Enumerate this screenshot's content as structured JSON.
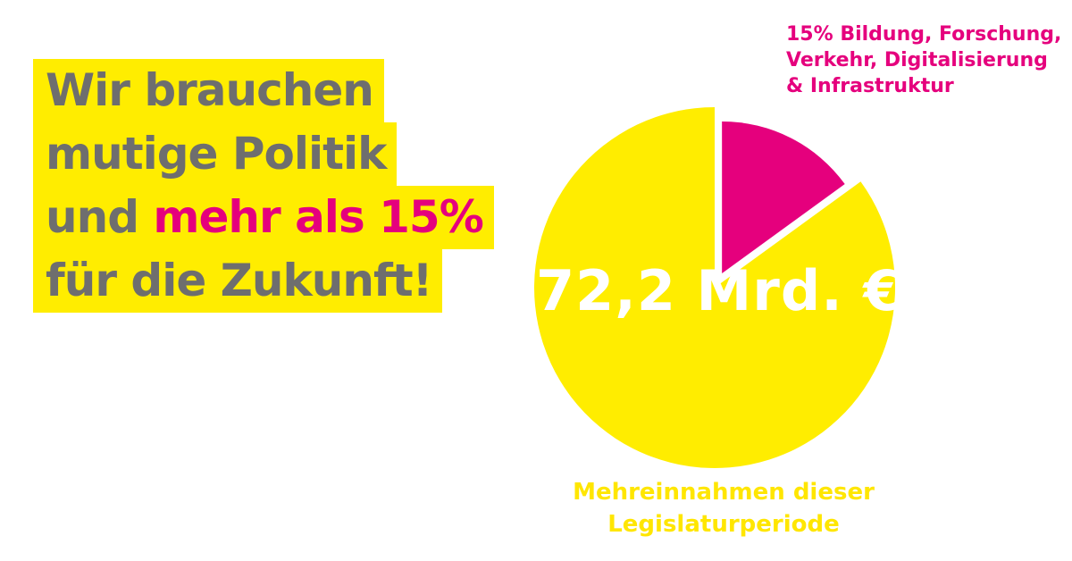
{
  "headline": {
    "line1": "Wir brauchen",
    "line2": "mutige Politik",
    "line3_prefix": "und ",
    "line3_highlight": "mehr als 15%",
    "line4": "für die Zukunft!"
  },
  "colors": {
    "yellow": "#ffed00",
    "magenta": "#e5007d",
    "gray": "#6e6e6e"
  },
  "chart_data": {
    "type": "pie",
    "title": "",
    "center_label": "72,2 Mrd. €",
    "slices": [
      {
        "label_lines": [
          "15% Bildung, Forschung,",
          "Verkehr, Digitalisierung",
          "& Infrastruktur"
        ],
        "value": 15,
        "color": "#e5007d",
        "exploded": true
      },
      {
        "label_lines": [
          "Mehreinnahmen dieser",
          "Legislaturperiode"
        ],
        "value": 85,
        "color": "#ffed00",
        "exploded": false
      }
    ]
  }
}
